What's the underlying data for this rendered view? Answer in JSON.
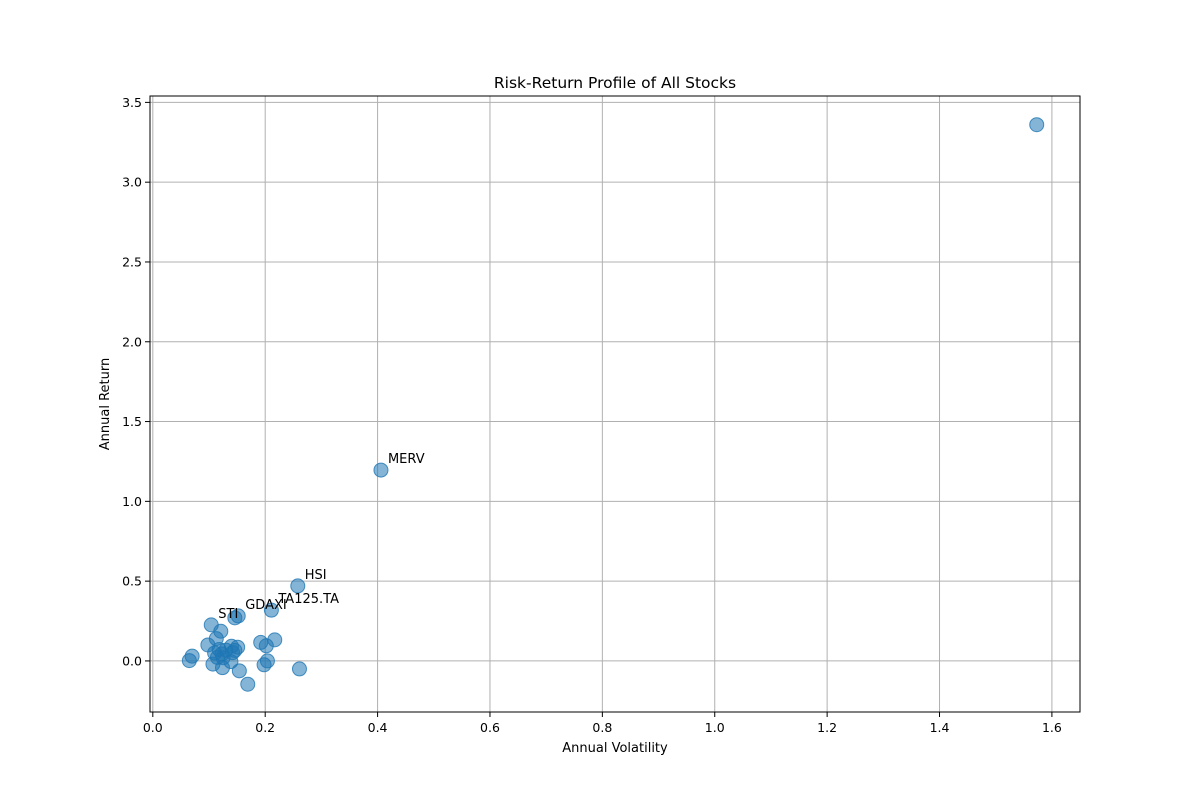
{
  "chart_data": {
    "type": "scatter",
    "title": "Risk-Return Profile of All Stocks",
    "xlabel": "Annual Volatility",
    "ylabel": "Annual Return",
    "xlim": [
      -0.005,
      1.65
    ],
    "ylim": [
      -0.32,
      3.54
    ],
    "xticks": [
      0.0,
      0.2,
      0.4,
      0.6,
      0.8,
      1.0,
      1.2,
      1.4,
      1.6
    ],
    "xtick_labels": [
      "0.0",
      "0.2",
      "0.4",
      "0.6",
      "0.8",
      "1.0",
      "1.2",
      "1.4",
      "1.6"
    ],
    "yticks": [
      0.0,
      0.5,
      1.0,
      1.5,
      2.0,
      2.5,
      3.0,
      3.5
    ],
    "ytick_labels": [
      "0.0",
      "0.5",
      "1.0",
      "1.5",
      "2.0",
      "2.5",
      "3.0",
      "3.5"
    ],
    "grid": true,
    "marker_color": "#1f77b4",
    "marker_alpha": 0.55,
    "points": [
      {
        "x": 1.573,
        "y": 3.36
      },
      {
        "x": 0.406,
        "y": 1.196,
        "label": "MERV"
      },
      {
        "x": 0.258,
        "y": 0.47,
        "label": "HSI"
      },
      {
        "x": 0.211,
        "y": 0.318,
        "label": "TA125.TA"
      },
      {
        "x": 0.152,
        "y": 0.282,
        "label": "GDAXI"
      },
      {
        "x": 0.146,
        "y": 0.27
      },
      {
        "x": 0.104,
        "y": 0.226,
        "label": "STI"
      },
      {
        "x": 0.121,
        "y": 0.186
      },
      {
        "x": 0.113,
        "y": 0.14
      },
      {
        "x": 0.217,
        "y": 0.132
      },
      {
        "x": 0.192,
        "y": 0.116
      },
      {
        "x": 0.098,
        "y": 0.1
      },
      {
        "x": 0.202,
        "y": 0.095
      },
      {
        "x": 0.14,
        "y": 0.092
      },
      {
        "x": 0.151,
        "y": 0.086
      },
      {
        "x": 0.118,
        "y": 0.072
      },
      {
        "x": 0.13,
        "y": 0.068
      },
      {
        "x": 0.146,
        "y": 0.066
      },
      {
        "x": 0.142,
        "y": 0.052
      },
      {
        "x": 0.11,
        "y": 0.05
      },
      {
        "x": 0.123,
        "y": 0.044
      },
      {
        "x": 0.07,
        "y": 0.03
      },
      {
        "x": 0.115,
        "y": 0.022
      },
      {
        "x": 0.125,
        "y": 0.02
      },
      {
        "x": 0.065,
        "y": 0.002
      },
      {
        "x": 0.204,
        "y": 0.0
      },
      {
        "x": 0.139,
        "y": -0.004
      },
      {
        "x": 0.107,
        "y": -0.02
      },
      {
        "x": 0.198,
        "y": -0.024
      },
      {
        "x": 0.124,
        "y": -0.042
      },
      {
        "x": 0.261,
        "y": -0.05
      },
      {
        "x": 0.154,
        "y": -0.062
      },
      {
        "x": 0.169,
        "y": -0.146
      }
    ]
  }
}
